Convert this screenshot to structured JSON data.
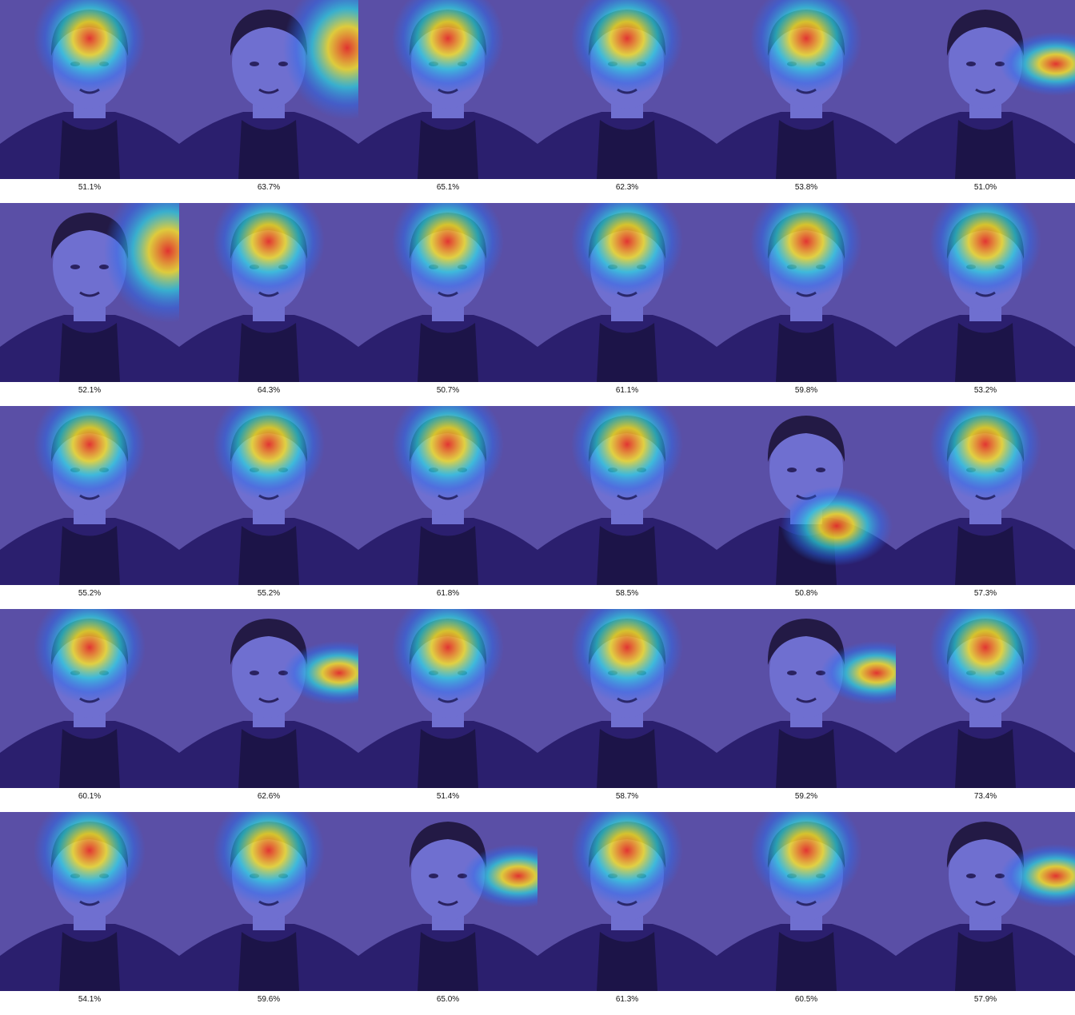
{
  "grid": {
    "columns": 6,
    "rows": 5,
    "colors": {
      "background_tint": "#5a4fa6",
      "heat_hot": "#e8322a",
      "heat_warm": "#f5e12a",
      "heat_mid": "#2ad8e0",
      "heat_cool": "#2a6ef0",
      "shirt": "#2b1f6e",
      "skin": "#6f6fd0",
      "hair": "#231a45"
    },
    "tiles": [
      {
        "caption": "51.1%",
        "heat": "forehead"
      },
      {
        "caption": "63.7%",
        "heat": "top-right"
      },
      {
        "caption": "65.1%",
        "heat": "forehead"
      },
      {
        "caption": "62.3%",
        "heat": "forehead"
      },
      {
        "caption": "53.8%",
        "heat": "forehead"
      },
      {
        "caption": "51.0%",
        "heat": "right"
      },
      {
        "caption": "52.1%",
        "heat": "top-right"
      },
      {
        "caption": "64.3%",
        "heat": "forehead"
      },
      {
        "caption": "50.7%",
        "heat": "forehead"
      },
      {
        "caption": "61.1%",
        "heat": "forehead"
      },
      {
        "caption": "59.8%",
        "heat": "forehead"
      },
      {
        "caption": "53.2%",
        "heat": "forehead"
      },
      {
        "caption": "55.2%",
        "heat": "forehead"
      },
      {
        "caption": "55.2%",
        "heat": "forehead"
      },
      {
        "caption": "61.8%",
        "heat": "forehead"
      },
      {
        "caption": "58.5%",
        "heat": "forehead"
      },
      {
        "caption": "50.8%",
        "heat": "chin-right"
      },
      {
        "caption": "57.3%",
        "heat": "forehead"
      },
      {
        "caption": "60.1%",
        "heat": "forehead"
      },
      {
        "caption": "62.6%",
        "heat": "right"
      },
      {
        "caption": "51.4%",
        "heat": "forehead"
      },
      {
        "caption": "58.7%",
        "heat": "forehead"
      },
      {
        "caption": "59.2%",
        "heat": "right"
      },
      {
        "caption": "73.4%",
        "heat": "forehead"
      },
      {
        "caption": "54.1%",
        "heat": "forehead"
      },
      {
        "caption": "59.6%",
        "heat": "forehead"
      },
      {
        "caption": "65.0%",
        "heat": "right"
      },
      {
        "caption": "61.3%",
        "heat": "forehead"
      },
      {
        "caption": "60.5%",
        "heat": "forehead"
      },
      {
        "caption": "57.9%",
        "heat": "right"
      }
    ]
  }
}
